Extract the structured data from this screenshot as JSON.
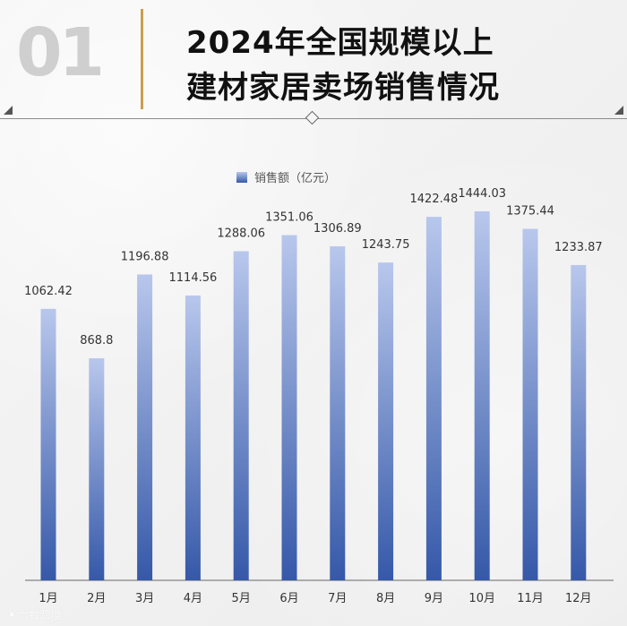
{
  "header": {
    "number": "01",
    "title_line_1": "2024年全国规模以上",
    "title_line_2": "建材家居卖场销售情况"
  },
  "legend": {
    "label": "销售额（亿元）"
  },
  "watermark": {
    "text": "六数跨境"
  },
  "chart_data": {
    "type": "bar",
    "categories": [
      "1月",
      "2月",
      "3月",
      "4月",
      "5月",
      "6月",
      "7月",
      "8月",
      "9月",
      "10月",
      "11月",
      "12月"
    ],
    "series": [
      {
        "name": "销售额（亿元）",
        "values": [
          1062.42,
          868.8,
          1196.88,
          1114.56,
          1288.06,
          1351.06,
          1306.89,
          1243.75,
          1422.48,
          1444.03,
          1375.44,
          1233.87
        ]
      }
    ],
    "value_labels": [
      "1062.42",
      "868.8",
      "1196.88",
      "1114.56",
      "1288.06",
      "1351.06",
      "1306.89",
      "1243.75",
      "1422.48",
      "1444.03",
      "1375.44",
      "1233.87"
    ],
    "xlabel": "",
    "ylabel": "",
    "ylim": [
      0,
      1500
    ],
    "grid": false,
    "legend_position": "top-center",
    "colors": {
      "bar_top": "#b8c7ec",
      "bar_bottom": "#3558a8",
      "axis": "#666666",
      "label": "#333333"
    }
  }
}
